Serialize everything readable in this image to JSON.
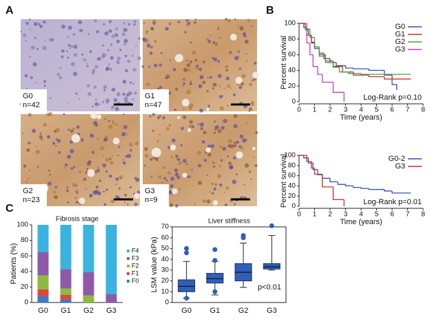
{
  "panel_labels": [
    "A",
    "B",
    "C"
  ],
  "images": [
    {
      "label": "G0",
      "n": "n=42"
    },
    {
      "label": "G1",
      "n": "n=47"
    },
    {
      "label": "G2",
      "n": "n=23"
    },
    {
      "label": "G3",
      "n": "n=9"
    }
  ],
  "chart_data": [
    {
      "type": "step",
      "y_label": "Percent survival",
      "x_label": "Time (years)",
      "annotation": "Log-Rank  p=0.10",
      "xlim": [
        0,
        8
      ],
      "xticks": [
        0,
        1,
        2,
        3,
        4,
        5,
        6,
        7,
        8
      ],
      "ylim": [
        0,
        100
      ],
      "yticks": [
        0,
        20,
        40,
        60,
        80,
        100
      ],
      "legend": "top-right",
      "series": [
        {
          "name": "G0",
          "color": "#3050b0",
          "x": [
            0,
            0.4,
            0.6,
            0.8,
            1.0,
            1.3,
            1.6,
            2.0,
            2.4,
            3.0,
            3.5,
            4.5,
            5.5,
            6.0,
            6.3
          ],
          "values": [
            100,
            92,
            85,
            75,
            68,
            62,
            55,
            50,
            46,
            43,
            42,
            40,
            34,
            22,
            15
          ]
        },
        {
          "name": "G1",
          "color": "#d02828",
          "x": [
            0,
            0.3,
            0.5,
            0.8,
            1.0,
            1.3,
            1.7,
            2.2,
            2.8,
            3.5,
            4.5,
            5.5,
            7.2
          ],
          "values": [
            100,
            95,
            85,
            76,
            70,
            60,
            52,
            45,
            38,
            34,
            32,
            29,
            29
          ]
        },
        {
          "name": "G2",
          "color": "#40a040",
          "x": [
            0,
            0.4,
            0.7,
            1.0,
            1.3,
            1.7,
            2.2,
            2.6,
            3.2,
            4.0,
            5.0,
            7.2
          ],
          "values": [
            100,
            93,
            82,
            70,
            58,
            50,
            44,
            38,
            36,
            35,
            35,
            35
          ]
        },
        {
          "name": "G3",
          "color": "#c040c0",
          "x": [
            0,
            0.5,
            0.7,
            0.9,
            1.2,
            1.5,
            2.2,
            2.9
          ],
          "values": [
            100,
            75,
            60,
            45,
            35,
            25,
            12,
            0
          ]
        }
      ]
    },
    {
      "type": "step",
      "y_label": "Percent survival",
      "x_label": "Time (years)",
      "annotation": "Log-Rank  p=0.01",
      "xlim": [
        0,
        8
      ],
      "xticks": [
        0,
        1,
        2,
        3,
        4,
        5,
        6,
        7,
        8
      ],
      "ylim": [
        0,
        100
      ],
      "yticks": [
        0,
        20,
        40,
        60,
        80,
        100
      ],
      "legend": "top-right",
      "series": [
        {
          "name": "G0-2",
          "color": "#3050b0",
          "x": [
            0,
            0.3,
            0.6,
            0.9,
            1.2,
            1.5,
            2.0,
            2.5,
            3.0,
            3.5,
            4.0,
            4.5,
            5.5,
            6.0,
            7.2
          ],
          "values": [
            100,
            95,
            85,
            72,
            62,
            55,
            48,
            43,
            40,
            37,
            35,
            33,
            30,
            26,
            26
          ]
        },
        {
          "name": "G3",
          "color": "#d02828",
          "x": [
            0,
            0.5,
            0.8,
            1.0,
            1.5,
            2.2,
            2.9
          ],
          "values": [
            100,
            88,
            75,
            63,
            38,
            13,
            0
          ]
        }
      ]
    },
    {
      "type": "stacked_bar",
      "title": "Fibrosis stage",
      "y_label": "Patients (%)",
      "categories": [
        "G0",
        "G1",
        "G2",
        "G3"
      ],
      "ylim": [
        0,
        100
      ],
      "yticks": [
        0,
        20,
        40,
        60,
        80,
        100
      ],
      "series": [
        {
          "name": "F0",
          "color": "#3a7bc8",
          "values": [
            8,
            4,
            0,
            0
          ]
        },
        {
          "name": "F1",
          "color": "#e0463c",
          "values": [
            9,
            6,
            0,
            0
          ]
        },
        {
          "name": "F2",
          "color": "#8dbb3c",
          "values": [
            18,
            8,
            9,
            0
          ]
        },
        {
          "name": "F3",
          "color": "#8e5aa8",
          "values": [
            30,
            25,
            30,
            11
          ]
        },
        {
          "name": "F4",
          "color": "#3bb3e0",
          "values": [
            35,
            57,
            61,
            89
          ]
        }
      ]
    },
    {
      "type": "box",
      "title": "Liver stiffness",
      "y_label": "LSM value (kPa)",
      "annotation": "p<0.01",
      "color": "#2f5fb8",
      "categories": [
        "G0",
        "G1",
        "G2",
        "G3"
      ],
      "ylim": [
        0,
        70
      ],
      "yticks": [
        0,
        10,
        20,
        30,
        40,
        50,
        60,
        70
      ],
      "boxes": [
        {
          "whislo": 4,
          "q1": 10,
          "med": 15,
          "q3": 21,
          "whishi": 38,
          "fliers": [
            46,
            50,
            4
          ]
        },
        {
          "whislo": 7,
          "q1": 18,
          "med": 22,
          "q3": 27,
          "whishi": 38,
          "fliers": [
            49,
            39,
            10
          ]
        },
        {
          "whislo": 14,
          "q1": 20,
          "med": 28,
          "q3": 36,
          "whishi": 55,
          "fliers": [
            60,
            62
          ]
        },
        {
          "whislo": 30,
          "q1": 31,
          "med": 33,
          "q3": 36,
          "whishi": 62,
          "fliers": [
            71
          ]
        }
      ]
    }
  ]
}
